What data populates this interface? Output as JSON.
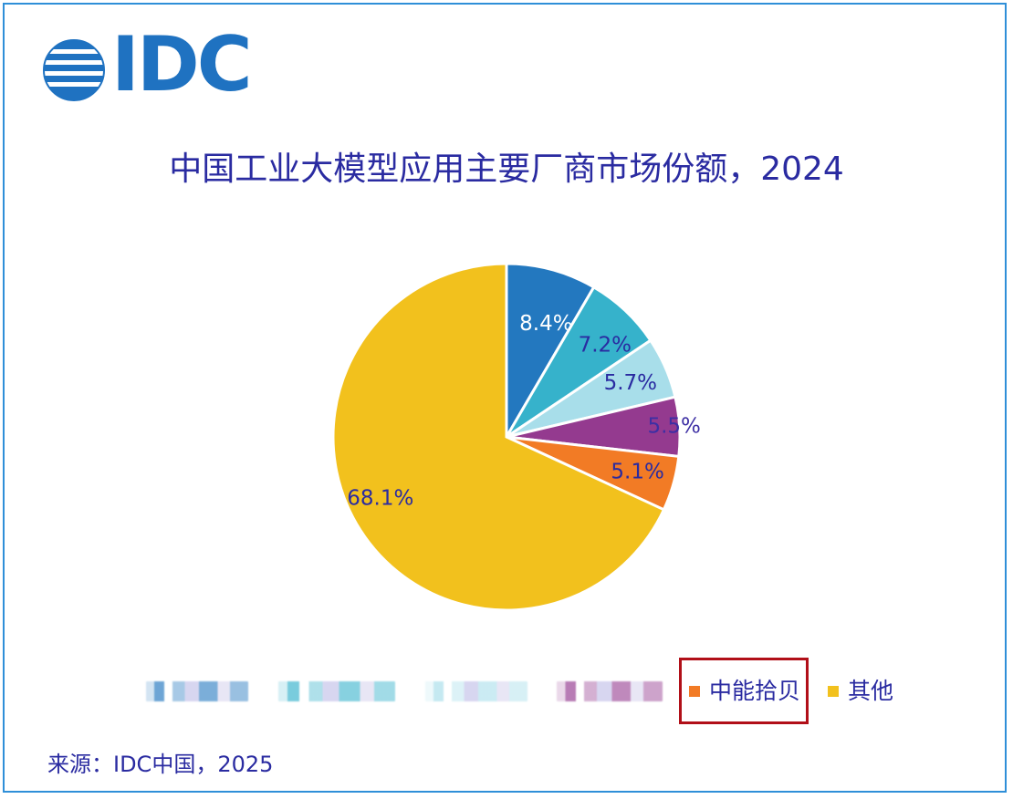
{
  "logo": {
    "text": "IDC"
  },
  "chart_data": {
    "type": "pie",
    "title": "中国工业大模型应用主要厂商市场份额，2024",
    "source": "来源：IDC中国，2025",
    "slices": [
      {
        "label": "",
        "value": 8.4,
        "display": "8.4%",
        "color": "#2378bf",
        "label_color": "#ffffff"
      },
      {
        "label": "",
        "value": 7.2,
        "display": "7.2%",
        "color": "#36b2cb",
        "label_color": "#2a2ba1"
      },
      {
        "label": "",
        "value": 5.7,
        "display": "5.7%",
        "color": "#a8deea",
        "label_color": "#2a2ba1"
      },
      {
        "label": "",
        "value": 5.5,
        "display": "5.5%",
        "color": "#943a8f",
        "label_color": "#3d2fa4"
      },
      {
        "label": "中能拾贝",
        "value": 5.1,
        "display": "5.1%",
        "color": "#f27b25",
        "label_color": "#2a2ba1"
      },
      {
        "label": "其他",
        "value": 68.1,
        "display": "68.1%",
        "color": "#f2c11d",
        "label_color": "#2a2ba1"
      }
    ],
    "legend": [
      {
        "label": "",
        "color": "#2378bf",
        "blurred": true
      },
      {
        "label": "",
        "color": "#36b2cb",
        "blurred": true
      },
      {
        "label": "",
        "color": "#a8deea",
        "blurred": true
      },
      {
        "label": "",
        "color": "#943a8f",
        "blurred": true
      },
      {
        "label": "中能拾贝",
        "color": "#f27b25",
        "blurred": false,
        "highlighted": true
      },
      {
        "label": "其他",
        "color": "#f2c11d",
        "blurred": false
      }
    ],
    "legend_position": "bottom"
  },
  "colors": {
    "frame": "#2f8fd8",
    "title": "#2a2ba1",
    "highlight": "#b10f18"
  }
}
